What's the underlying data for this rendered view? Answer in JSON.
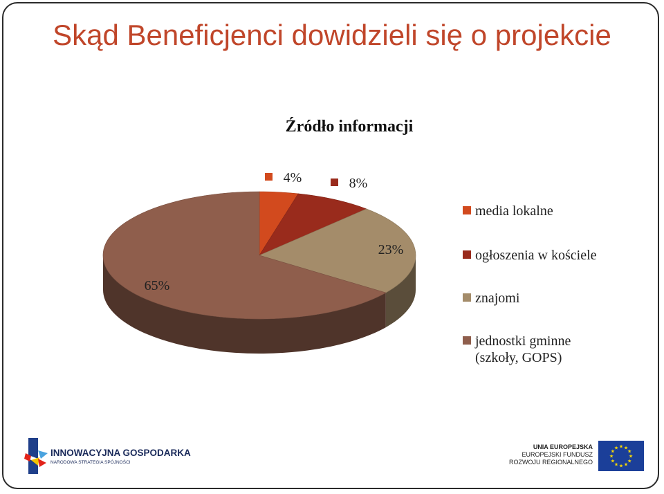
{
  "slide_title": "Skąd Beneficjenci dowidzieli się o projekcie",
  "chart_data": {
    "type": "pie",
    "title": "Źródło informacji",
    "categories": [
      "media lokalne",
      "ogłoszenia w kościele",
      "znajomi",
      "jednostki gminne (szkoły, GOPS)"
    ],
    "values": [
      4,
      8,
      23,
      65
    ],
    "labels": [
      "4%",
      "8%",
      "23%",
      "65%"
    ],
    "colors": [
      "#d24a1e",
      "#992b1c",
      "#a48c6a",
      "#8f5e4c"
    ],
    "legend_position": "right",
    "style": "3d"
  },
  "footer": {
    "left_logo_name": "INNOWACYJNA GOSPODARKA",
    "left_logo_sub": "NARODOWA STRATEGIA SPÓJNOŚCI",
    "right_logo_line1": "UNIA EUROPEJSKA",
    "right_logo_line2": "EUROPEJSKI FUNDUSZ",
    "right_logo_line3": "ROZWOJU REGIONALNEGO"
  }
}
